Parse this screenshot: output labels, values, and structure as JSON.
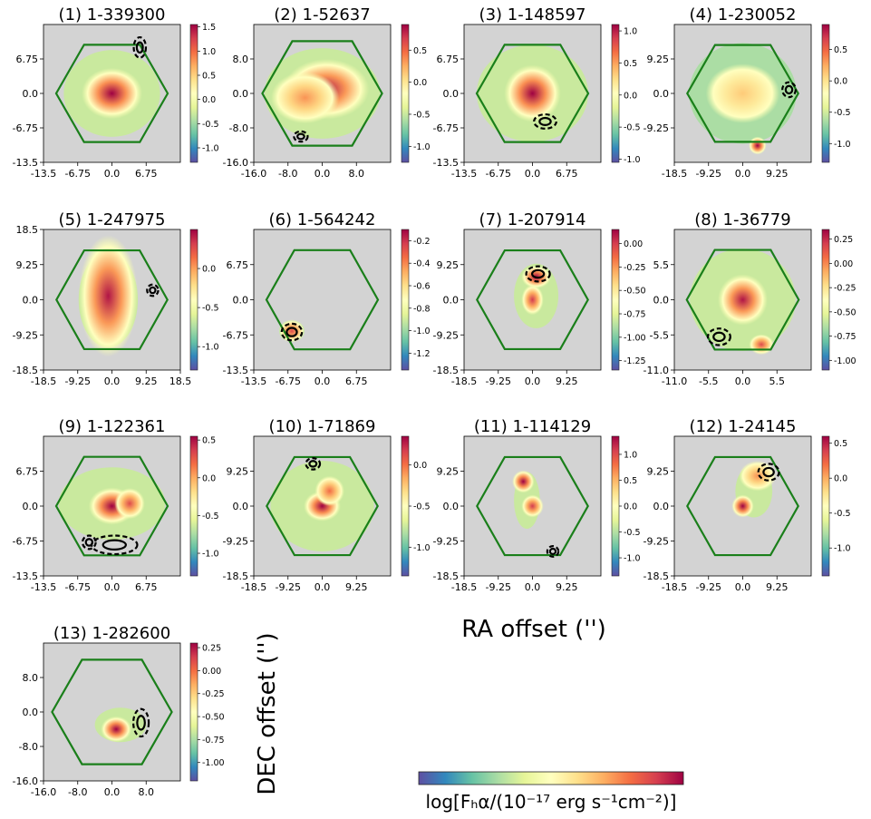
{
  "figure": {
    "xlabel": "RA offset ('')",
    "ylabel": "DEC offset ('')",
    "colorbar_label": "log[Fₕα/(10⁻¹⁷ erg s⁻¹cm⁻²)]",
    "colormap": "Spectral_r",
    "colormap_stops": [
      "#5e4fa2",
      "#3288bd",
      "#66c2a5",
      "#abdda4",
      "#e6f598",
      "#ffffbf",
      "#fee08b",
      "#fdae61",
      "#f46d43",
      "#d53e4f",
      "#9e0142"
    ],
    "background": "#d3d3d3",
    "hexagon_color": "#1a7f1a",
    "contour_color": "#000000"
  },
  "chart_data": [
    {
      "title": "(1) 1-339300",
      "type": "heatmap",
      "xticks": [
        "-13.5",
        "-6.75",
        "0.0",
        "6.75"
      ],
      "yticks": [
        "6.75",
        "0.0",
        "-6.75",
        "-13.5"
      ],
      "cbar_ticks": [
        "1.5",
        "1.0",
        "0.5",
        "0.0",
        "-0.5",
        "-1.0"
      ],
      "cbar_range": [
        -1.3,
        1.55
      ],
      "hex_radius": 11.0,
      "xrange": [
        -13.5,
        13.5
      ],
      "yrange": [
        -13.5,
        13.5
      ],
      "emission": [
        {
          "x": 0,
          "y": 0,
          "sx": 3,
          "sy": 2.5,
          "peak": 1
        }
      ],
      "coverage": {
        "x": 0,
        "y": 0,
        "rx": 9.5,
        "ry": 8.5
      },
      "contours": [
        {
          "x": 5.5,
          "y": 9.0,
          "rx": 1.2,
          "ry": 2.0
        }
      ]
    },
    {
      "title": "(2) 1-52637",
      "type": "heatmap",
      "xticks": [
        "-16.0",
        "-8.0",
        "0.0",
        "8.0"
      ],
      "yticks": [
        "8.0",
        "0.0",
        "-8.0",
        "-16.0"
      ],
      "cbar_ticks": [
        "0.5",
        "0.0",
        "-0.5",
        "-1.0"
      ],
      "cbar_range": [
        -1.25,
        0.9
      ],
      "hex_radius": 14.0,
      "xrange": [
        -16,
        16
      ],
      "yrange": [
        -16,
        16
      ],
      "emission": [
        {
          "x": 1,
          "y": 1,
          "sx": 5,
          "sy": 3.5,
          "peak": 0.95
        },
        {
          "x": -4,
          "y": -1,
          "sx": 4,
          "sy": 3,
          "peak": 0.6
        }
      ],
      "coverage": {
        "x": 0,
        "y": 0,
        "rx": 13.5,
        "ry": 10.5
      },
      "contours": [
        {
          "x": -5,
          "y": -10,
          "rx": 1.6,
          "ry": 1.2
        }
      ]
    },
    {
      "title": "(3) 1-148597",
      "type": "heatmap",
      "xticks": [
        "-13.5",
        "-6.75",
        "0.0",
        "6.75"
      ],
      "yticks": [
        "6.75",
        "0.0",
        "-6.75",
        "-13.5"
      ],
      "cbar_ticks": [
        "1.0",
        "0.5",
        "0.0",
        "-0.5",
        "-1.0"
      ],
      "cbar_range": [
        -1.05,
        1.1
      ],
      "hex_radius": 11.0,
      "xrange": [
        -13.5,
        13.5
      ],
      "yrange": [
        -13.5,
        13.5
      ],
      "emission": [
        {
          "x": 0,
          "y": 0,
          "sx": 2.8,
          "sy": 2.8,
          "peak": 1
        }
      ],
      "coverage": {
        "x": 0,
        "y": 0,
        "rx": 11,
        "ry": 9.5
      },
      "contours": [
        {
          "x": 2.5,
          "y": -5.5,
          "rx": 2.2,
          "ry": 1.4
        }
      ]
    },
    {
      "title": "(4) 1-230052",
      "type": "heatmap",
      "xticks": [
        "-18.5",
        "-9.25",
        "0.0",
        "9.25"
      ],
      "yticks": [
        "9.25",
        "0.0",
        "-9.25"
      ],
      "cbar_ticks": [
        "0.5",
        "0.0",
        "-0.5",
        "-1.0"
      ],
      "cbar_range": [
        -1.3,
        0.9
      ],
      "hex_radius": 15.0,
      "xrange": [
        -18.5,
        18.5
      ],
      "yrange": [
        -18.5,
        18.5
      ],
      "emission": [
        {
          "x": 0,
          "y": 0,
          "sx": 5,
          "sy": 4,
          "peak": 0.45
        },
        {
          "x": 4,
          "y": -14,
          "sx": 1.2,
          "sy": 1.2,
          "peak": 1
        }
      ],
      "coverage": {
        "x": 0,
        "y": 0,
        "rx": 14.5,
        "ry": 13.5
      },
      "contours": [
        {
          "x": 12.5,
          "y": 1,
          "rx": 1.8,
          "ry": 2.0
        }
      ]
    },
    {
      "title": "(5) 1-247975",
      "type": "heatmap",
      "xticks": [
        "-18.5",
        "-9.25",
        "0.0",
        "9.25",
        "18.5"
      ],
      "yticks": [
        "18.5",
        "9.25",
        "0.0",
        "-9.25",
        "-18.5"
      ],
      "cbar_ticks": [
        "0.0",
        "-0.5",
        "-1.0"
      ],
      "cbar_range": [
        -1.3,
        0.5
      ],
      "hex_radius": 15.0,
      "xrange": [
        -18.5,
        18.5
      ],
      "yrange": [
        -18.5,
        18.5
      ],
      "emission": [
        {
          "x": -1,
          "y": 1,
          "sx": 4,
          "sy": 8,
          "peak": 0.95
        }
      ],
      "coverage": {
        "x": -1,
        "y": 0,
        "rx": 8,
        "ry": 12.5
      },
      "contours": [
        {
          "x": 11,
          "y": 2.5,
          "rx": 1.5,
          "ry": 1.5
        }
      ]
    },
    {
      "title": "(6) 1-564242",
      "type": "heatmap",
      "xticks": [
        "-13.5",
        "-6.75",
        "0.0",
        "6.75"
      ],
      "yticks": [
        "6.75",
        "0.0",
        "-6.75",
        "-13.5"
      ],
      "cbar_ticks": [
        "-0.2",
        "-0.4",
        "-0.6",
        "-0.8",
        "-1.0",
        "-1.2"
      ],
      "cbar_range": [
        -1.35,
        -0.1
      ],
      "hex_radius": 11.0,
      "xrange": [
        -13.5,
        13.5
      ],
      "yrange": [
        -13.5,
        13.5
      ],
      "emission": [
        {
          "x": -6,
          "y": -6,
          "sx": 1.3,
          "sy": 1.1,
          "peak": 0.8
        }
      ],
      "coverage": {
        "x": -6,
        "y": -6,
        "rx": 2.5,
        "ry": 2.0
      },
      "contours": [
        {
          "x": -6,
          "y": -6.2,
          "rx": 2.0,
          "ry": 1.6
        }
      ]
    },
    {
      "title": "(7) 1-207914",
      "type": "heatmap",
      "xticks": [
        "-18.5",
        "-9.25",
        "0.0",
        "9.25"
      ],
      "yticks": [
        "9.25",
        "0.0",
        "-9.25",
        "-18.5"
      ],
      "cbar_ticks": [
        "0.00",
        "-0.25",
        "-0.50",
        "-0.75",
        "-1.00",
        "-1.25"
      ],
      "cbar_range": [
        -1.35,
        0.15
      ],
      "hex_radius": 15.0,
      "xrange": [
        -18.5,
        18.5
      ],
      "yrange": [
        -18.5,
        18.5
      ],
      "emission": [
        {
          "x": 1,
          "y": 6,
          "sx": 2,
          "sy": 1.5,
          "peak": 1
        },
        {
          "x": 0,
          "y": 0,
          "sx": 1.5,
          "sy": 2,
          "peak": 0.85
        }
      ],
      "coverage": {
        "x": 1,
        "y": 1,
        "rx": 6,
        "ry": 8.5
      },
      "contours": [
        {
          "x": 1.5,
          "y": 6.8,
          "rx": 3.2,
          "ry": 2.0
        }
      ]
    },
    {
      "title": "(8) 1-36779",
      "type": "heatmap",
      "xticks": [
        "-11.0",
        "-5.5",
        "0.0",
        "5.5"
      ],
      "yticks": [
        "5.5",
        "0.0",
        "-5.5",
        "-11.0"
      ],
      "cbar_ticks": [
        "0.25",
        "0.00",
        "-0.25",
        "-0.50",
        "-0.75",
        "-1.00"
      ],
      "cbar_range": [
        -1.1,
        0.35
      ],
      "hex_radius": 9.0,
      "xrange": [
        -11,
        11
      ],
      "yrange": [
        -11,
        11
      ],
      "emission": [
        {
          "x": 0,
          "y": 0,
          "sx": 2,
          "sy": 2,
          "peak": 0.95
        },
        {
          "x": 3,
          "y": -7,
          "sx": 1,
          "sy": 0.8,
          "peak": 0.8
        }
      ],
      "coverage": {
        "x": 0,
        "y": 0,
        "rx": 8.5,
        "ry": 8
      },
      "contours": [
        {
          "x": -3.8,
          "y": -5.8,
          "rx": 1.8,
          "ry": 1.3
        }
      ]
    },
    {
      "title": "(9) 1-122361",
      "type": "heatmap",
      "xticks": [
        "-13.5",
        "-6.75",
        "0.0",
        "6.75"
      ],
      "yticks": [
        "6.75",
        "0.0",
        "-6.75",
        "-13.5"
      ],
      "cbar_ticks": [
        "0.5",
        "0.0",
        "-0.5",
        "-1.0"
      ],
      "cbar_range": [
        -1.3,
        0.55
      ],
      "hex_radius": 11.0,
      "xrange": [
        -13.5,
        13.5
      ],
      "yrange": [
        -13.5,
        13.5
      ],
      "emission": [
        {
          "x": 0,
          "y": 0,
          "sx": 2.3,
          "sy": 1.8,
          "peak": 1
        },
        {
          "x": 3.5,
          "y": 0.5,
          "sx": 1.5,
          "sy": 1.5,
          "peak": 0.8
        }
      ],
      "coverage": {
        "x": 0,
        "y": 0.5,
        "rx": 10.5,
        "ry": 7
      },
      "contours": [
        {
          "x": -4.5,
          "y": -7,
          "rx": 1.3,
          "ry": 1.3
        },
        {
          "x": 0.5,
          "y": -7.5,
          "rx": 4.5,
          "ry": 1.8
        }
      ]
    },
    {
      "title": "(10) 1-71869",
      "type": "heatmap",
      "xticks": [
        "-18.5",
        "-9.25",
        "0.0",
        "9.25"
      ],
      "yticks": [
        "9.25",
        "0.0",
        "-9.25",
        "-18.5"
      ],
      "cbar_ticks": [
        "0.0",
        "-0.5",
        "-1.0"
      ],
      "cbar_range": [
        -1.35,
        0.35
      ],
      "hex_radius": 15.0,
      "xrange": [
        -18.5,
        18.5
      ],
      "yrange": [
        -18.5,
        18.5
      ],
      "emission": [
        {
          "x": 0,
          "y": 0,
          "sx": 2.5,
          "sy": 2,
          "peak": 1
        },
        {
          "x": 2,
          "y": 4,
          "sx": 2,
          "sy": 2,
          "peak": 0.7
        }
      ],
      "coverage": {
        "x": 0,
        "y": 0,
        "rx": 14,
        "ry": 12
      },
      "contours": [
        {
          "x": -2.5,
          "y": 11.2,
          "rx": 1.9,
          "ry": 1.5
        }
      ]
    },
    {
      "title": "(11) 1-114129",
      "type": "heatmap",
      "xticks": [
        "-18.5",
        "-9.25",
        "0.0",
        "9.25"
      ],
      "yticks": [
        "9.25",
        "0.0",
        "-9.25",
        "-18.5"
      ],
      "cbar_ticks": [
        "1.0",
        "0.5",
        "0.0",
        "-0.5",
        "-1.0"
      ],
      "cbar_range": [
        -1.35,
        1.35
      ],
      "hex_radius": 15.0,
      "xrange": [
        -18.5,
        18.5
      ],
      "yrange": [
        -18.5,
        18.5
      ],
      "emission": [
        {
          "x": -2.5,
          "y": 6.5,
          "sx": 1.5,
          "sy": 1.5,
          "peak": 1
        },
        {
          "x": 0,
          "y": 0,
          "sx": 1.5,
          "sy": 1.5,
          "peak": 0.85
        }
      ],
      "coverage": {
        "x": -1.5,
        "y": 1.5,
        "rx": 3.5,
        "ry": 7.5
      },
      "contours": [
        {
          "x": 5.5,
          "y": -12,
          "rx": 1.5,
          "ry": 1.4
        }
      ]
    },
    {
      "title": "(12) 1-24145",
      "type": "heatmap",
      "xticks": [
        "-18.5",
        "-9.25",
        "0.0",
        "9.25"
      ],
      "yticks": [
        "9.25",
        "0.0",
        "-9.25",
        "-18.5"
      ],
      "cbar_ticks": [
        "0.5",
        "0.0",
        "-0.5",
        "-1.0"
      ],
      "cbar_range": [
        -1.4,
        0.6
      ],
      "hex_radius": 15.0,
      "xrange": [
        -18.5,
        18.5
      ],
      "yrange": [
        -18.5,
        18.5
      ],
      "emission": [
        {
          "x": 0,
          "y": 0,
          "sx": 1.5,
          "sy": 1.5,
          "peak": 1
        },
        {
          "x": 4,
          "y": 8,
          "sx": 2.5,
          "sy": 2,
          "peak": 0.6
        }
      ],
      "coverage": {
        "x": 3,
        "y": 4,
        "rx": 5,
        "ry": 7
      },
      "contours": [
        {
          "x": 7,
          "y": 9,
          "rx": 2.8,
          "ry": 2.2
        }
      ]
    },
    {
      "title": "(13) 1-282600",
      "type": "heatmap",
      "xticks": [
        "-16.0",
        "-8.0",
        "0.0",
        "8.0"
      ],
      "yticks": [
        "8.0",
        "0.0",
        "-8.0",
        "-16.0"
      ],
      "cbar_ticks": [
        "0.25",
        "0.00",
        "-0.25",
        "-0.50",
        "-0.75",
        "-1.00"
      ],
      "cbar_range": [
        -1.2,
        0.3
      ],
      "hex_radius": 14.0,
      "xrange": [
        -16,
        16
      ],
      "yrange": [
        -16,
        16
      ],
      "emission": [
        {
          "x": 1,
          "y": -4,
          "sx": 1.8,
          "sy": 1.5,
          "peak": 1
        }
      ],
      "coverage": {
        "x": 2,
        "y": -3,
        "rx": 6,
        "ry": 4
      },
      "contours": [
        {
          "x": 6.8,
          "y": -2.5,
          "rx": 1.8,
          "ry": 3.2
        }
      ]
    }
  ]
}
